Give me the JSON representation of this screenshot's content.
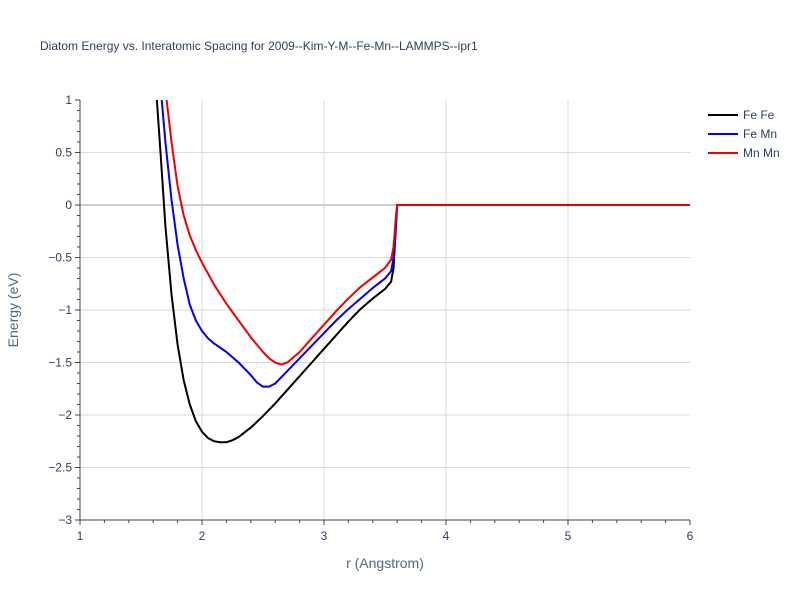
{
  "chart_data": {
    "type": "line",
    "title": "Diatom Energy vs. Interatomic Spacing for 2009--Kim-Y-M--Fe-Mn--LAMMPS--ipr1",
    "xlabel": "r (Angstrom)",
    "ylabel": "Energy (eV)",
    "xlim": [
      1,
      6
    ],
    "ylim": [
      -3,
      1
    ],
    "x_ticks": [
      "1",
      "2",
      "3",
      "4",
      "5",
      "6"
    ],
    "y_ticks": [
      "1",
      "0.5",
      "0",
      "−0.5",
      "−1",
      "−1.5",
      "−2",
      "−2.5",
      "−3"
    ],
    "grid": true,
    "legend_position": "top-right",
    "series": [
      {
        "name": "Fe Fe",
        "color": "#000000",
        "x": [
          1.63,
          1.66,
          1.7,
          1.75,
          1.8,
          1.85,
          1.9,
          1.95,
          2.0,
          2.05,
          2.1,
          2.15,
          2.2,
          2.25,
          2.3,
          2.4,
          2.5,
          2.6,
          2.7,
          2.8,
          2.9,
          3.0,
          3.1,
          3.2,
          3.3,
          3.4,
          3.5,
          3.55,
          3.57,
          3.59,
          3.6,
          3.7,
          4.0,
          5.0,
          6.0
        ],
        "y": [
          1.0,
          0.5,
          -0.2,
          -0.85,
          -1.33,
          -1.67,
          -1.9,
          -2.06,
          -2.16,
          -2.22,
          -2.25,
          -2.26,
          -2.26,
          -2.24,
          -2.21,
          -2.12,
          -2.01,
          -1.89,
          -1.76,
          -1.63,
          -1.5,
          -1.37,
          -1.24,
          -1.11,
          -0.99,
          -0.89,
          -0.8,
          -0.73,
          -0.6,
          -0.2,
          0.0,
          0.0,
          0.0,
          0.0,
          0.0
        ]
      },
      {
        "name": "Fe Mn",
        "color": "#0000ee",
        "x": [
          1.67,
          1.7,
          1.75,
          1.8,
          1.85,
          1.9,
          1.95,
          2.0,
          2.05,
          2.1,
          2.2,
          2.3,
          2.4,
          2.45,
          2.5,
          2.55,
          2.6,
          2.7,
          2.8,
          2.9,
          3.0,
          3.1,
          3.2,
          3.3,
          3.4,
          3.5,
          3.55,
          3.57,
          3.59,
          3.6,
          3.7,
          4.0,
          5.0,
          6.0
        ],
        "y": [
          1.0,
          0.6,
          0.05,
          -0.38,
          -0.7,
          -0.95,
          -1.1,
          -1.2,
          -1.27,
          -1.32,
          -1.4,
          -1.5,
          -1.62,
          -1.69,
          -1.73,
          -1.73,
          -1.7,
          -1.58,
          -1.46,
          -1.34,
          -1.22,
          -1.1,
          -0.99,
          -0.89,
          -0.79,
          -0.7,
          -0.63,
          -0.5,
          -0.15,
          0.0,
          0.0,
          0.0,
          0.0,
          0.0
        ]
      },
      {
        "name": "Mn Mn",
        "color": "#ee0000",
        "x": [
          1.71,
          1.75,
          1.8,
          1.85,
          1.9,
          1.95,
          2.0,
          2.1,
          2.2,
          2.3,
          2.4,
          2.5,
          2.55,
          2.6,
          2.65,
          2.7,
          2.8,
          2.9,
          3.0,
          3.1,
          3.2,
          3.3,
          3.4,
          3.5,
          3.55,
          3.57,
          3.59,
          3.6,
          3.7,
          4.0,
          5.0,
          6.0
        ],
        "y": [
          1.0,
          0.6,
          0.18,
          -0.1,
          -0.29,
          -0.43,
          -0.55,
          -0.76,
          -0.94,
          -1.1,
          -1.26,
          -1.4,
          -1.46,
          -1.5,
          -1.52,
          -1.5,
          -1.4,
          -1.27,
          -1.14,
          -1.01,
          -0.89,
          -0.78,
          -0.69,
          -0.6,
          -0.52,
          -0.4,
          -0.1,
          0.0,
          0.0,
          0.0,
          0.0,
          0.0
        ]
      }
    ]
  }
}
